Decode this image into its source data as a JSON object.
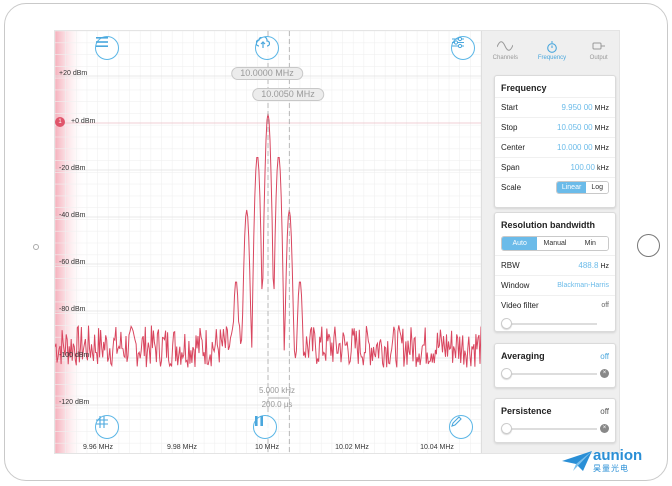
{
  "colors": {
    "accent": "#4aa7dd",
    "trace": "#d9465f",
    "reference": "#e0556b"
  },
  "plot": {
    "y_labels": [
      "+20 dBm",
      "+0 dBm",
      "-20 dBm",
      "-40 dBm",
      "-60 dBm",
      "-80 dBm",
      "-100 dBm",
      "-120 dBm"
    ],
    "x_labels": [
      "9.96 MHz",
      "9.98 MHz",
      "10 MHz",
      "10.02 MHz",
      "10.04 MHz"
    ],
    "reference_marker": "1",
    "marker_pill_1": "10.0000 MHz",
    "marker_pill_2": "10.0050 MHz",
    "delta_freq": "5.000 kHz",
    "delta_time": "200.0 µs"
  },
  "chart_data": {
    "type": "line",
    "x_unit": "MHz",
    "y_unit": "dBm",
    "xlim": [
      9.95,
      10.05
    ],
    "ylim": [
      -130,
      30
    ],
    "peaks": [
      {
        "x": 9.9925,
        "y": -67
      },
      {
        "x": 9.995,
        "y": -37
      },
      {
        "x": 9.9975,
        "y": -14
      },
      {
        "x": 10.0,
        "y": 4
      },
      {
        "x": 10.0025,
        "y": -14
      },
      {
        "x": 10.005,
        "y": -37
      },
      {
        "x": 10.0075,
        "y": -67
      }
    ],
    "noise_floor": -95,
    "markers": [
      10.0,
      10.005
    ]
  },
  "toolbar": {
    "menu_icon": "menu-icon",
    "upload_icon": "upload-icon",
    "settings_icon": "sliders-icon",
    "grid_icon": "grid-icon",
    "pause_icon": "pause-icon",
    "edit_icon": "edit-icon"
  },
  "tabs": [
    {
      "label": "Channels",
      "icon": "waveform-icon",
      "active": false
    },
    {
      "label": "Frequency",
      "icon": "stopwatch-icon",
      "active": true
    },
    {
      "label": "Output",
      "icon": "output-icon",
      "active": false
    }
  ],
  "frequency": {
    "title": "Frequency",
    "start_label": "Start",
    "start_value": "9.950 00",
    "start_unit": "MHz",
    "stop_label": "Stop",
    "stop_value": "10.050 00",
    "stop_unit": "MHz",
    "center_label": "Center",
    "center_value": "10.000 00",
    "center_unit": "MHz",
    "span_label": "Span",
    "span_value": "100.00",
    "span_unit": "kHz",
    "scale_label": "Scale",
    "scale_linear": "Linear",
    "scale_log": "Log"
  },
  "rbw": {
    "title": "Resolution bandwidth",
    "auto": "Auto",
    "manual": "Manual",
    "min": "Min",
    "rbw_label": "RBW",
    "rbw_value": "488.8",
    "rbw_unit": "Hz",
    "window_label": "Window",
    "window_value": "Blackman-Harris",
    "video_label": "Video filter",
    "video_value": "off"
  },
  "averaging": {
    "title": "Averaging",
    "value": "off"
  },
  "persistence": {
    "title": "Persistence",
    "value": "off"
  },
  "logo": {
    "brand": "aunion",
    "sub": "昊量光电"
  }
}
